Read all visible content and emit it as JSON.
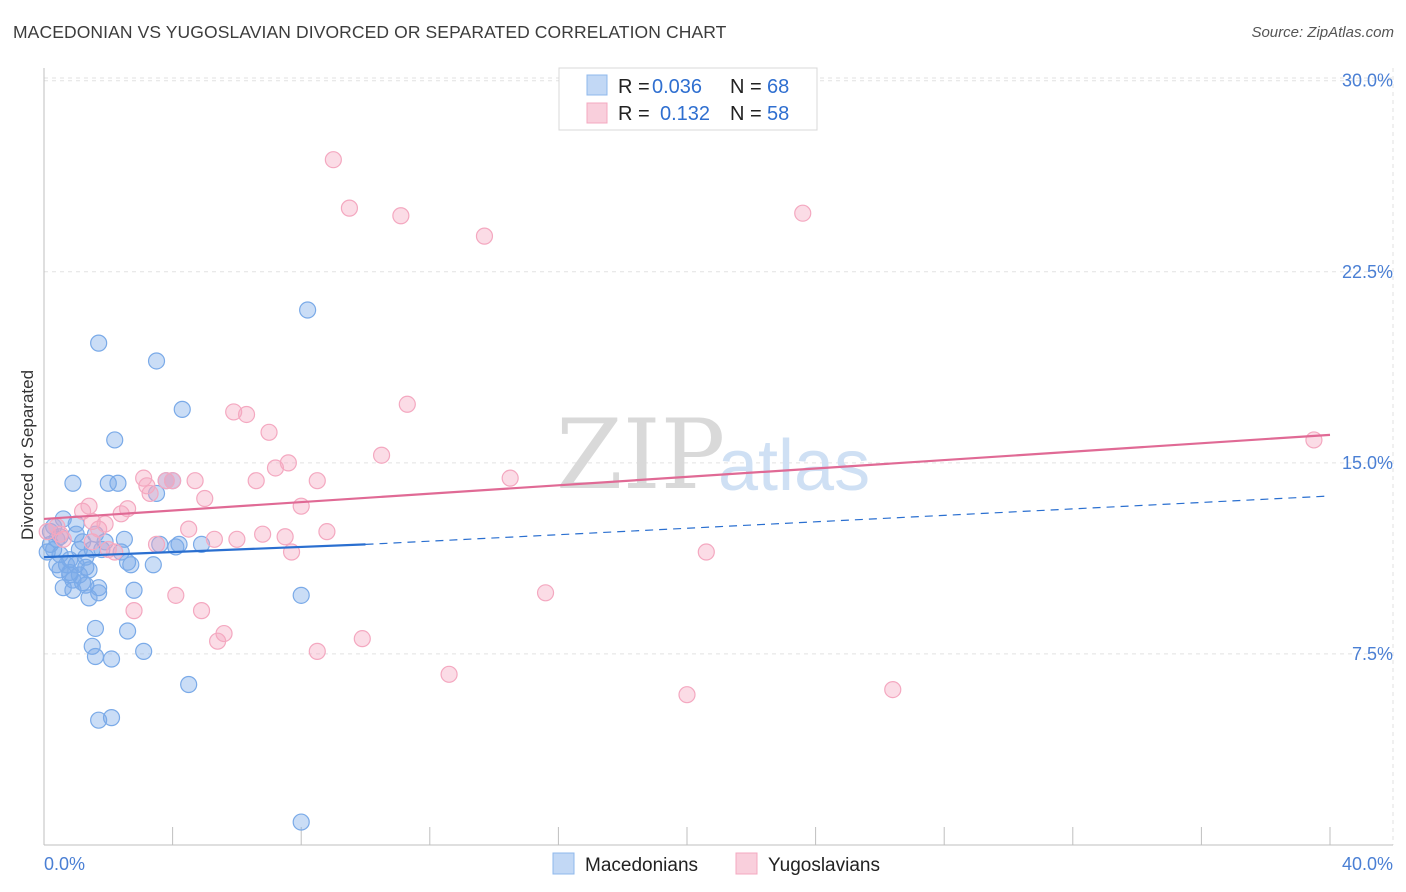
{
  "title": "MACEDONIAN VS YUGOSLAVIAN DIVORCED OR SEPARATED CORRELATION CHART",
  "source": "Source: ZipAtlas.com",
  "watermark": {
    "zip": "ZIP",
    "atlas": "atlas"
  },
  "legend": {
    "r_label": "R =",
    "n_label": "N =",
    "rows": [
      {
        "r": "0.036",
        "n": "68",
        "color": "#8fb8ec"
      },
      {
        "r": "0.132",
        "n": "58",
        "color": "#f4a8c0"
      }
    ]
  },
  "chart_data": {
    "type": "scatter",
    "title": "MACEDONIAN VS YUGOSLAVIAN DIVORCED OR SEPARATED CORRELATION CHART",
    "xlabel": "",
    "ylabel": "Divorced or Separated",
    "xlim": [
      0,
      40
    ],
    "ylim": [
      0,
      30.5
    ],
    "x_tick_labels": [
      "0.0%",
      "40.0%"
    ],
    "y_ticks": [
      7.5,
      15.0,
      22.5,
      30.0
    ],
    "y_tick_labels": [
      "7.5%",
      "15.0%",
      "22.5%",
      "30.0%"
    ],
    "grid": true,
    "series": [
      {
        "name": "Macedonians",
        "color": "#7aaae8",
        "line_color": "#2a6fd0",
        "trend": {
          "x0": 0,
          "y0": 11.3,
          "x1": 10,
          "y1": 11.8,
          "dash_to_x": 40,
          "dash_to_y": 13.7
        },
        "points": [
          [
            0.2,
            11.8
          ],
          [
            0.3,
            12.5
          ],
          [
            0.3,
            11.6
          ],
          [
            0.4,
            12.0
          ],
          [
            0.5,
            10.8
          ],
          [
            0.5,
            11.4
          ],
          [
            0.6,
            12.8
          ],
          [
            0.6,
            10.1
          ],
          [
            0.7,
            11.0
          ],
          [
            0.8,
            10.6
          ],
          [
            0.8,
            11.2
          ],
          [
            0.9,
            10.4
          ],
          [
            0.9,
            10.0
          ],
          [
            0.9,
            14.2
          ],
          [
            1.0,
            12.6
          ],
          [
            1.0,
            11.0
          ],
          [
            1.1,
            10.6
          ],
          [
            1.1,
            11.6
          ],
          [
            1.2,
            10.3
          ],
          [
            1.2,
            11.9
          ],
          [
            1.3,
            11.3
          ],
          [
            1.3,
            10.9
          ],
          [
            1.4,
            9.7
          ],
          [
            1.4,
            10.8
          ],
          [
            1.5,
            11.6
          ],
          [
            1.5,
            7.8
          ],
          [
            1.6,
            12.2
          ],
          [
            1.6,
            7.4
          ],
          [
            1.6,
            8.5
          ],
          [
            1.7,
            4.9
          ],
          [
            1.7,
            10.1
          ],
          [
            1.7,
            9.9
          ],
          [
            1.7,
            19.7
          ],
          [
            1.8,
            11.6
          ],
          [
            2.0,
            14.2
          ],
          [
            2.1,
            7.3
          ],
          [
            2.1,
            5.0
          ],
          [
            2.2,
            15.9
          ],
          [
            2.3,
            14.2
          ],
          [
            2.5,
            12.0
          ],
          [
            2.6,
            11.1
          ],
          [
            2.6,
            8.4
          ],
          [
            2.7,
            11.0
          ],
          [
            2.8,
            10.0
          ],
          [
            3.1,
            7.6
          ],
          [
            3.4,
            11.0
          ],
          [
            3.5,
            13.8
          ],
          [
            3.5,
            19.0
          ],
          [
            3.6,
            11.8
          ],
          [
            3.8,
            14.3
          ],
          [
            4.0,
            14.3
          ],
          [
            4.2,
            11.8
          ],
          [
            4.3,
            17.1
          ],
          [
            4.5,
            6.3
          ],
          [
            4.9,
            11.8
          ],
          [
            8.0,
            0.9
          ],
          [
            8.0,
            9.8
          ],
          [
            8.2,
            21.0
          ],
          [
            0.1,
            11.5
          ],
          [
            0.4,
            11.0
          ],
          [
            1.0,
            12.2
          ],
          [
            1.9,
            11.9
          ],
          [
            4.1,
            11.7
          ],
          [
            0.5,
            12.1
          ],
          [
            0.8,
            10.7
          ],
          [
            1.3,
            10.2
          ],
          [
            2.4,
            11.5
          ],
          [
            0.2,
            12.3
          ]
        ]
      },
      {
        "name": "Yugoslavians",
        "color": "#f4a8c0",
        "line_color": "#e06a95",
        "trend": {
          "x0": 0,
          "y0": 12.8,
          "x1": 40,
          "y1": 16.1
        },
        "points": [
          [
            0.1,
            12.3
          ],
          [
            0.4,
            12.5
          ],
          [
            0.5,
            12.2
          ],
          [
            0.6,
            12.0
          ],
          [
            1.2,
            13.1
          ],
          [
            1.4,
            13.3
          ],
          [
            1.5,
            11.9
          ],
          [
            1.5,
            12.7
          ],
          [
            1.7,
            12.4
          ],
          [
            1.9,
            12.6
          ],
          [
            2.2,
            11.5
          ],
          [
            2.4,
            13.0
          ],
          [
            2.6,
            13.2
          ],
          [
            2.8,
            9.2
          ],
          [
            3.1,
            14.4
          ],
          [
            3.3,
            13.8
          ],
          [
            3.5,
            11.8
          ],
          [
            3.8,
            14.3
          ],
          [
            4.0,
            14.3
          ],
          [
            4.1,
            9.8
          ],
          [
            4.5,
            12.4
          ],
          [
            4.7,
            14.3
          ],
          [
            4.9,
            9.2
          ],
          [
            5.0,
            13.6
          ],
          [
            5.3,
            12.0
          ],
          [
            5.4,
            8.0
          ],
          [
            5.6,
            8.3
          ],
          [
            5.9,
            17.0
          ],
          [
            6.0,
            12.0
          ],
          [
            6.3,
            16.9
          ],
          [
            6.6,
            14.3
          ],
          [
            6.8,
            12.2
          ],
          [
            7.0,
            16.2
          ],
          [
            7.2,
            14.8
          ],
          [
            7.5,
            12.1
          ],
          [
            7.6,
            15.0
          ],
          [
            7.7,
            11.5
          ],
          [
            8.0,
            13.3
          ],
          [
            8.5,
            7.6
          ],
          [
            8.5,
            14.3
          ],
          [
            8.8,
            12.3
          ],
          [
            9.0,
            26.9
          ],
          [
            9.5,
            25.0
          ],
          [
            9.9,
            8.1
          ],
          [
            10.5,
            15.3
          ],
          [
            11.1,
            24.7
          ],
          [
            11.3,
            17.3
          ],
          [
            12.6,
            6.7
          ],
          [
            13.7,
            23.9
          ],
          [
            14.5,
            14.4
          ],
          [
            15.6,
            9.9
          ],
          [
            20.0,
            5.9
          ],
          [
            20.6,
            11.5
          ],
          [
            23.6,
            24.8
          ],
          [
            26.4,
            6.1
          ],
          [
            39.5,
            15.9
          ],
          [
            3.2,
            14.1
          ],
          [
            2.0,
            11.6
          ]
        ]
      }
    ]
  },
  "bottom_legend": [
    {
      "label": "Macedonians",
      "color": "#8fb8ec"
    },
    {
      "label": "Yugoslavians",
      "color": "#f4a8c0"
    }
  ]
}
